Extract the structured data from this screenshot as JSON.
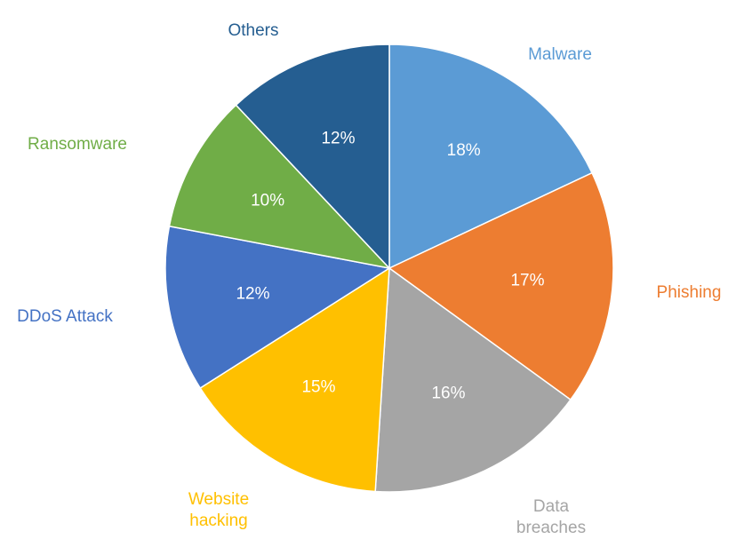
{
  "chart_data": {
    "type": "pie",
    "categories": [
      "Malware",
      "Phishing",
      "Data breaches",
      "Website hacking",
      "DDoS Attack",
      "Ransomware",
      "Others"
    ],
    "values": [
      18,
      17,
      16,
      15,
      12,
      10,
      12
    ],
    "value_labels": [
      "18%",
      "17%",
      "16%",
      "15%",
      "12%",
      "10%",
      "12%"
    ],
    "category_label_lines": [
      [
        "Malware"
      ],
      [
        "Phishing"
      ],
      [
        "Data",
        "breaches"
      ],
      [
        "Website",
        "hacking"
      ],
      [
        "DDoS Attack"
      ],
      [
        "Ransomware"
      ],
      [
        "Others"
      ]
    ],
    "colors": [
      "#5b9bd5",
      "#ed7d31",
      "#a5a5a5",
      "#ffc000",
      "#4472c4",
      "#70ad47",
      "#255e91"
    ],
    "start_angle_deg": 0,
    "direction": "clockwise",
    "legend": "none"
  }
}
